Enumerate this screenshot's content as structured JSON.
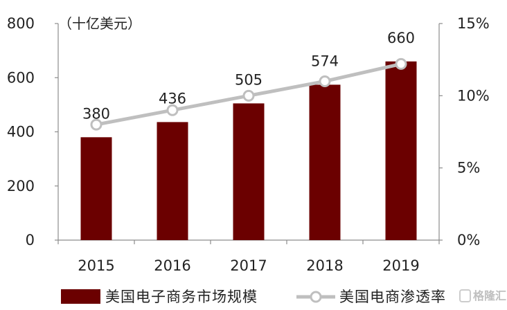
{
  "chart_data": {
    "type": "bar",
    "categories": [
      "2015",
      "2016",
      "2017",
      "2018",
      "2019"
    ],
    "series": [
      {
        "name": "美国电子商务市场规模",
        "type": "bar",
        "axis": "left",
        "values": [
          380,
          436,
          505,
          574,
          660
        ],
        "color": "#6b0000"
      },
      {
        "name": "美国电商渗透率",
        "type": "line",
        "axis": "right",
        "values": [
          8.0,
          9.0,
          10.0,
          11.0,
          12.2
        ],
        "unit": "%",
        "color": "#bfbfbf",
        "marker": "circle"
      }
    ],
    "data_labels": [
      "380",
      "436",
      "505",
      "574",
      "660"
    ],
    "left_axis": {
      "unit_label": "（十亿美元）",
      "ylim": [
        0,
        800
      ],
      "ticks": [
        "0",
        "200",
        "400",
        "600",
        "800"
      ]
    },
    "right_axis": {
      "ylim": [
        0,
        15
      ],
      "ticks": [
        "0%",
        "5%",
        "10%",
        "15%"
      ]
    },
    "grid": false,
    "legend_position": "bottom"
  },
  "watermark": "格隆汇"
}
